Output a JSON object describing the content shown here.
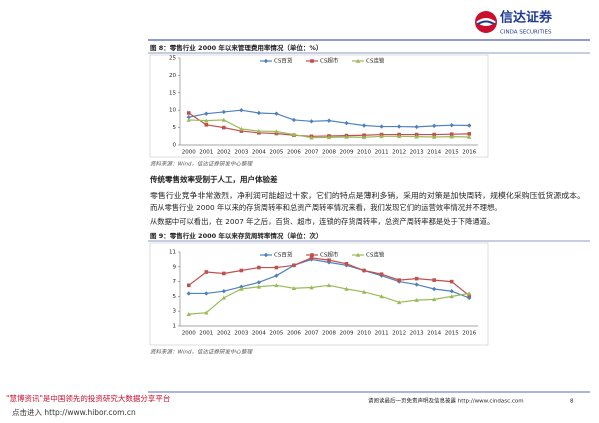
{
  "header": {
    "logo_text": "信达证券",
    "logo_sub": "CINDA SECURITIES"
  },
  "chart_data": [
    {
      "type": "line",
      "title": "图 8：零售行业 2000 年以来管理费用率情况（单位：%）",
      "source": "资料来源：Wind，信达证券研发中心整理",
      "categories": [
        "2000",
        "2001",
        "2002",
        "2003",
        "2004",
        "2005",
        "2006",
        "2007",
        "2008",
        "2009",
        "2010",
        "2011",
        "2012",
        "2013",
        "2014",
        "2015",
        "2016"
      ],
      "ylim": [
        0,
        25
      ],
      "yticks": [
        0,
        5,
        10,
        15,
        20,
        25
      ],
      "grid": false,
      "legend": "top",
      "series": [
        {
          "name": "CS百货",
          "color": "#4f81bd",
          "marker": "diamond",
          "values": [
            8,
            9,
            9.5,
            10,
            9.2,
            9,
            7.2,
            6.8,
            7,
            6.3,
            5.6,
            5.3,
            5.3,
            5.2,
            5.5,
            5.7,
            5.6
          ]
        },
        {
          "name": "CS超市",
          "color": "#c0504d",
          "marker": "square",
          "values": [
            9.2,
            5.8,
            5,
            4,
            3.5,
            3.3,
            2.8,
            2.5,
            2.6,
            2.7,
            2.8,
            3,
            3,
            3,
            3,
            3.1,
            3.2
          ]
        },
        {
          "name": "CS连锁",
          "color": "#9bbb59",
          "marker": "triangle",
          "values": [
            7.2,
            7,
            7.2,
            4.6,
            4,
            3.9,
            3,
            2.1,
            2.2,
            2.3,
            2.2,
            2.5,
            2.5,
            2.4,
            2.3,
            2.4,
            2.3
          ]
        }
      ]
    },
    {
      "type": "line",
      "title": "图 9：零售行业 2000 年以来存货周转率情况（单位：次）",
      "source": "资料来源：Wind，信达证券研发中心整理",
      "categories": [
        "2000",
        "2001",
        "2002",
        "2003",
        "2004",
        "2005",
        "2006",
        "2007",
        "2008",
        "2009",
        "2010",
        "2011",
        "2012",
        "2013",
        "2014",
        "2015",
        "2016"
      ],
      "ylim": [
        1,
        11
      ],
      "yticks": [
        1,
        3,
        5,
        7,
        9,
        11
      ],
      "grid": false,
      "legend": "top",
      "series": [
        {
          "name": "CS百货",
          "color": "#4f81bd",
          "marker": "diamond",
          "values": [
            5.4,
            5.4,
            5.7,
            6.3,
            6.9,
            7.8,
            9.2,
            10,
            9.6,
            9.2,
            8.5,
            7.8,
            7,
            6.6,
            6,
            5.7,
            4.8
          ]
        },
        {
          "name": "CS超市",
          "color": "#c0504d",
          "marker": "square",
          "values": [
            6.5,
            8.3,
            8.1,
            8.5,
            8.9,
            8.9,
            9.2,
            10.2,
            9.9,
            9.4,
            8.5,
            8,
            7.2,
            7.4,
            7.2,
            7,
            5.1
          ]
        },
        {
          "name": "CS连锁",
          "color": "#9bbb59",
          "marker": "triangle",
          "values": [
            2.6,
            2.8,
            4.8,
            6,
            6.3,
            6.5,
            6.1,
            6.2,
            6.5,
            6,
            5.6,
            5,
            4.2,
            4.5,
            4.6,
            5,
            5.4
          ]
        }
      ]
    }
  ],
  "section": {
    "heading": "传统零售效率受制于人工，用户体验差",
    "paragraphs": [
      [
        "零售行业竞争非常激烈，净利润可能超过十家，它们的特点是薄利多销，采用的对策是加快周转，规模化采购压低货源成本。",
        "而从零售行业 2000 年以来的存货周转率和总资产周转率情况来看，我们发现它们的运营效率情况并不理想。"
      ],
      [
        "从数据中可以看出，在 2007 年之后，百货、超市，连锁的存货周转率，总资产周转率都是处于下降通道。"
      ]
    ]
  },
  "footer": {
    "disclaimer": "请阅读最后一页免责声明及信息披露 http://www.cindasc.com",
    "page": "8"
  },
  "watermark": {
    "line1": "\"慧博资讯\"是中国领先的投资研究大数据分享平台",
    "line2": "点击进入 http://www.hibor.com.cn"
  }
}
